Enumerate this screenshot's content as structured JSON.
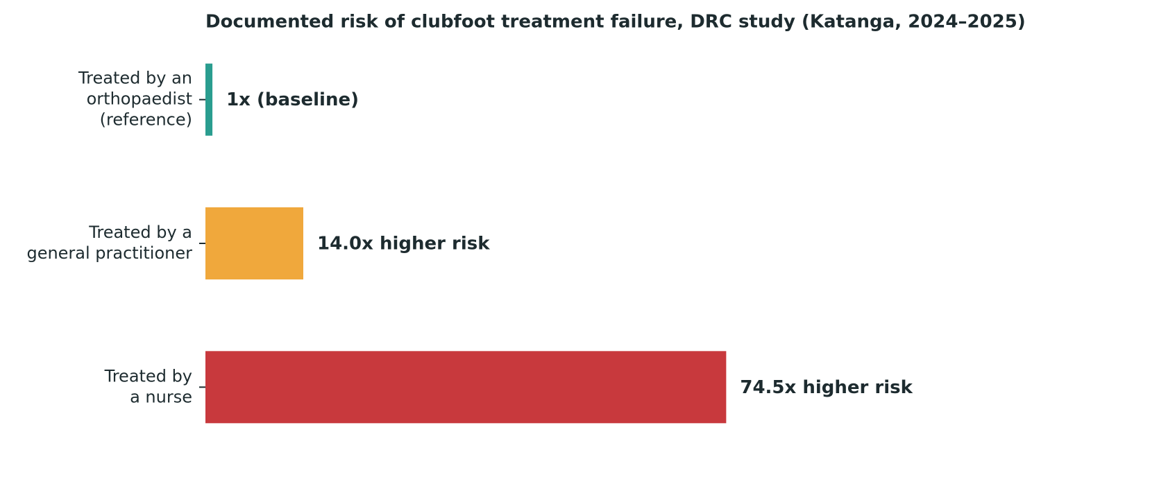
{
  "chart_data": {
    "type": "hbar",
    "title": "Documented risk of clubfoot treatment failure, DRC study (Katanga, 2024–2025)",
    "categories": [
      [
        "Treated by an",
        "orthopaedist",
        "(reference)"
      ],
      [
        "Treated by a",
        "general practitioner"
      ],
      [
        "Treated by",
        "a nurse"
      ]
    ],
    "values": [
      1,
      14.0,
      74.5
    ],
    "value_labels": [
      "1x (baseline)",
      "14.0x higher risk",
      "74.5x higher risk"
    ],
    "colors": [
      "#2a9d8f",
      "#f0a83c",
      "#c8393d"
    ],
    "xlim": [
      0,
      125
    ]
  }
}
